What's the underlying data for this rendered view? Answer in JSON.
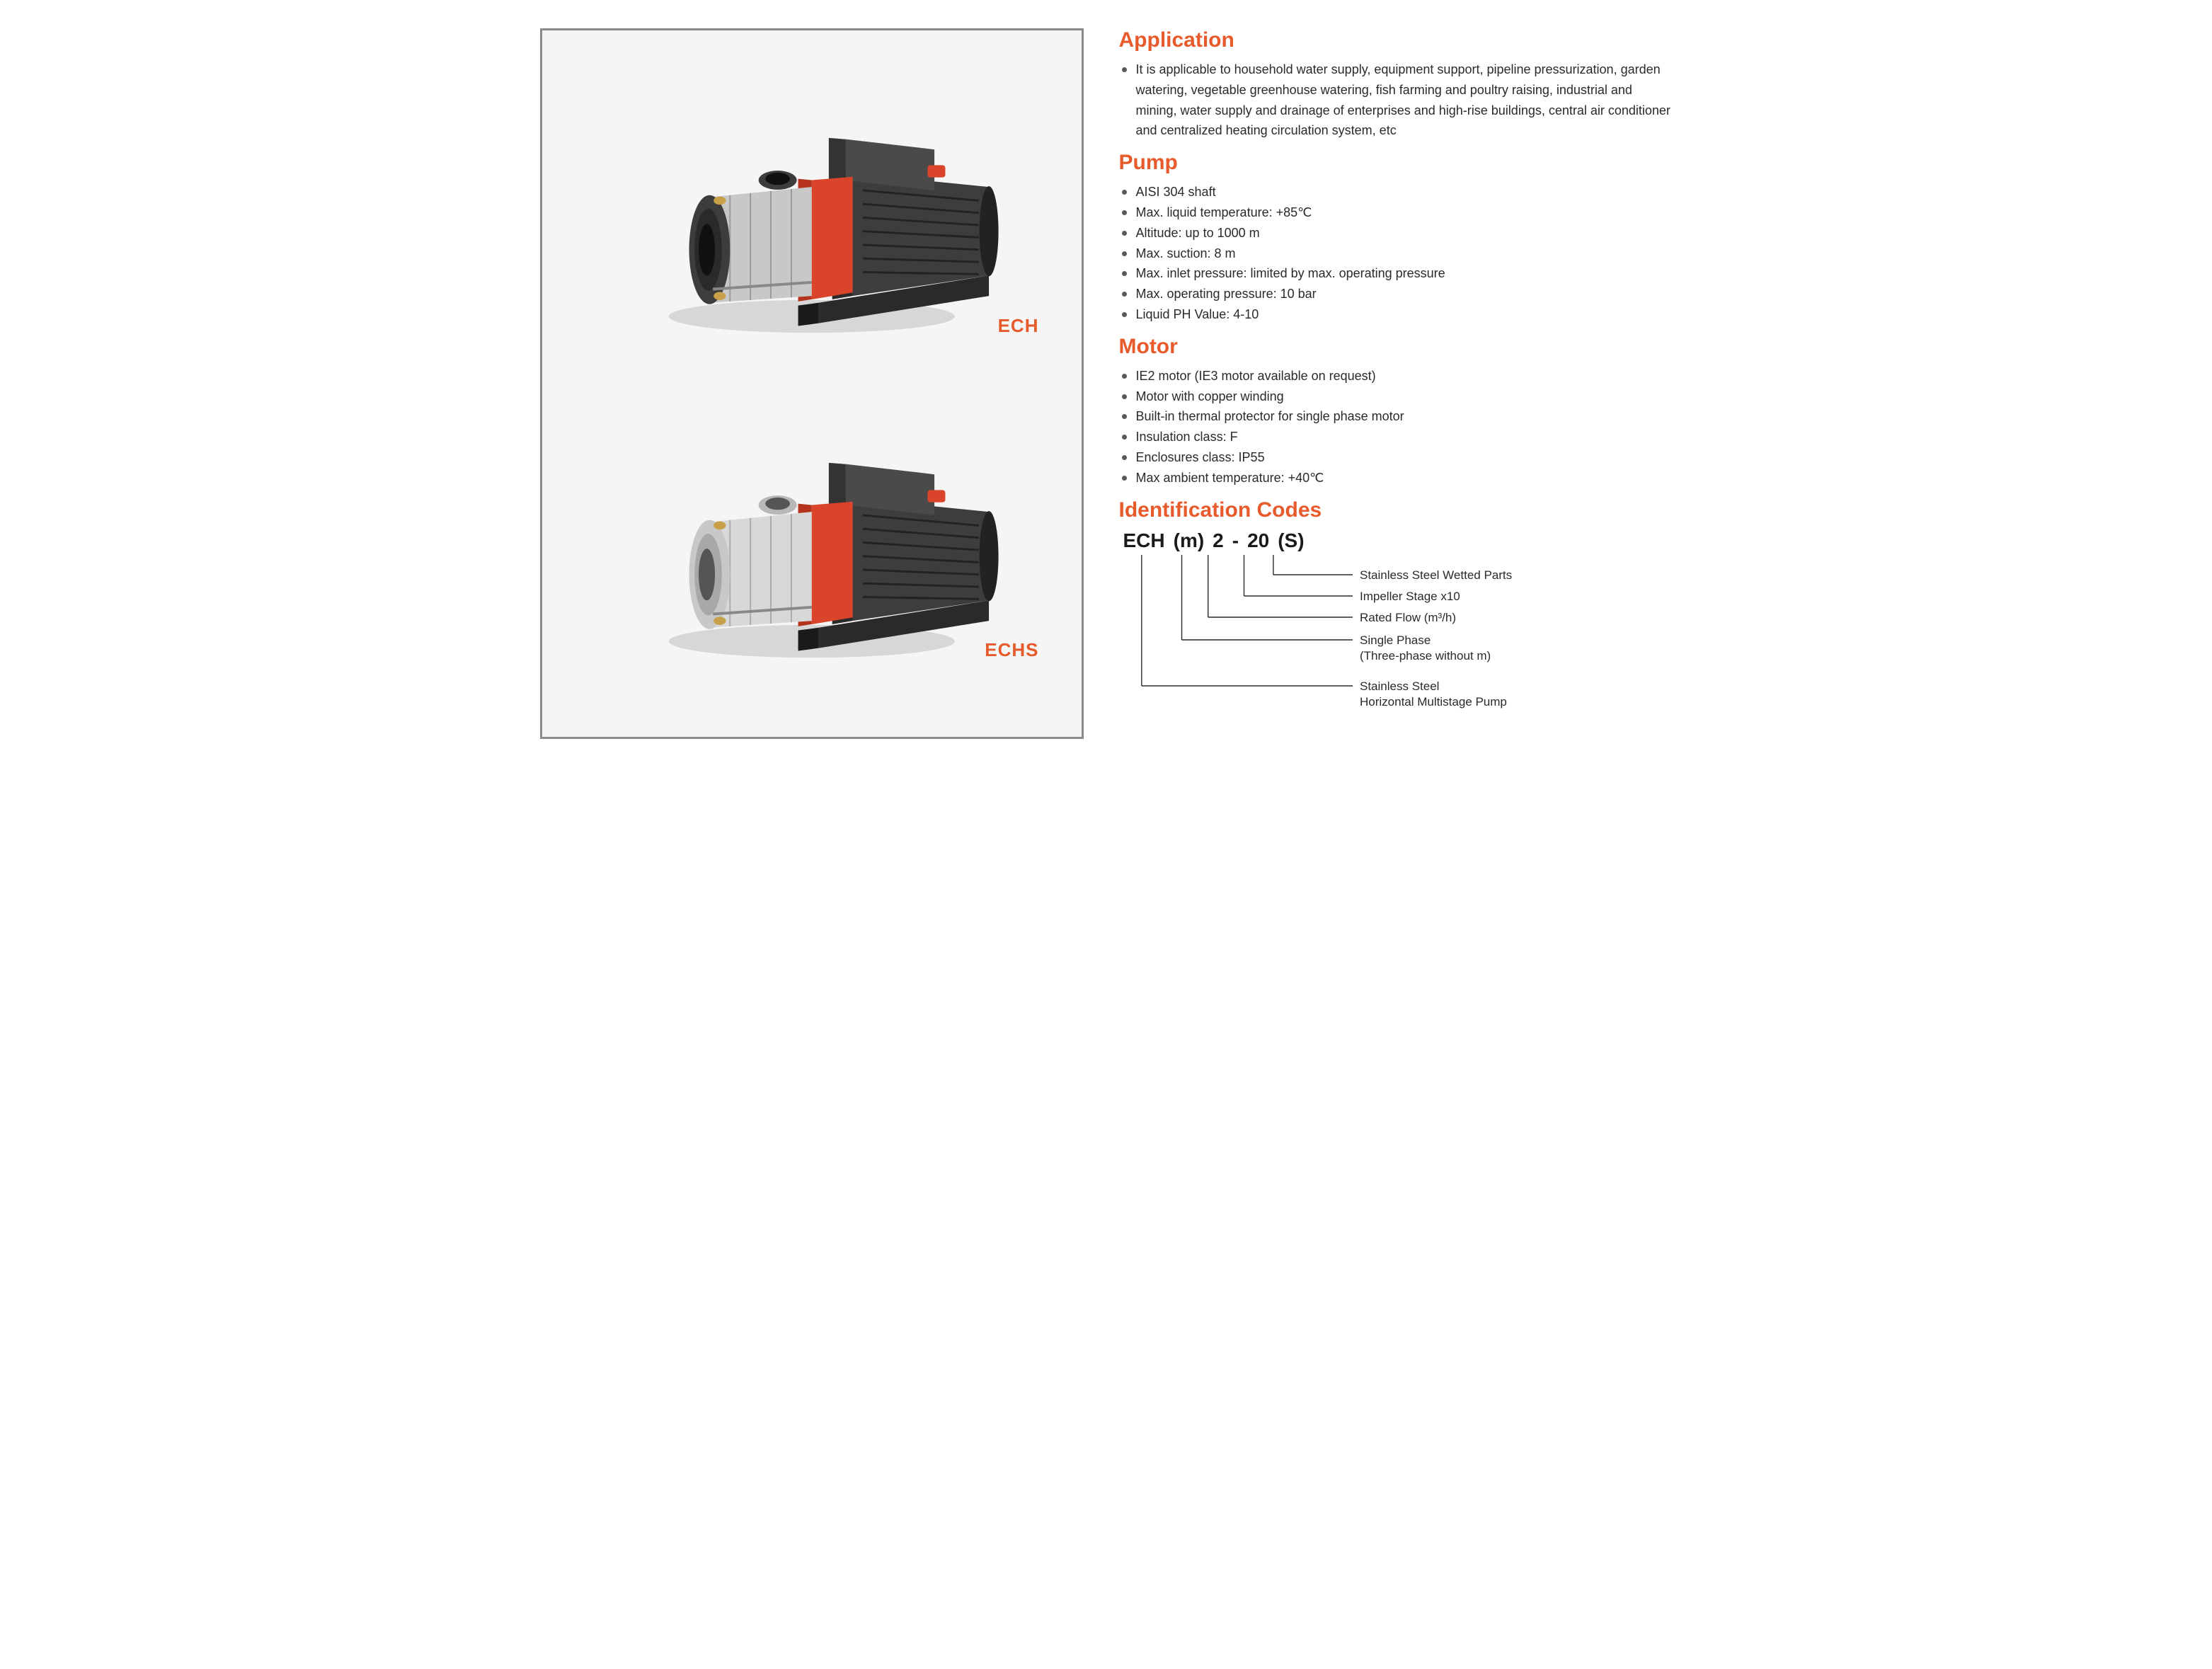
{
  "colors": {
    "accent": "#e75a2b",
    "text": "#2a2a2a",
    "bullet": "#5a5a5a",
    "panel_border": "#8a8a8a",
    "panel_bg": "#f5f5f5",
    "pump_body_dark": "#3d3d3d",
    "pump_body_light": "#5a5a5a",
    "pump_steel": "#c8c8c8",
    "pump_steel_light": "#e2e2e2",
    "pump_red": "#d9442a",
    "pump_red_dark": "#b5331c",
    "pump_brass": "#c9a04a"
  },
  "products": [
    {
      "label": "ECH",
      "body_material": "dark"
    },
    {
      "label": "ECHS",
      "body_material": "steel"
    }
  ],
  "sections": {
    "application": {
      "heading": "Application",
      "items": [
        "It is applicable to household water supply, equipment support, pipeline pressurization, garden watering, vegetable greenhouse watering, fish farming and poultry raising, industrial and mining, water supply and drainage of enterprises and high-rise buildings, central air conditioner and centralized heating circulation system, etc"
      ]
    },
    "pump": {
      "heading": "Pump",
      "items": [
        "AISI 304 shaft",
        "Max. liquid temperature: +85℃",
        "Altitude: up to 1000 m",
        "Max. suction: 8 m",
        "Max. inlet pressure: limited by max. operating pressure",
        "Max. operating pressure: 10 bar",
        "Liquid PH Value: 4-10"
      ]
    },
    "motor": {
      "heading": "Motor",
      "items": [
        "IE2 motor (IE3 motor available on request)",
        "Motor with copper winding",
        "Built-in thermal protector for single phase motor",
        "Insulation class: F",
        "Enclosures class: IP55",
        "Max ambient temperature: +40℃"
      ]
    },
    "identification": {
      "heading": "Identification Codes",
      "code_segments": [
        "ECH",
        "(m)",
        "2",
        "-",
        "20",
        "(S)"
      ],
      "mappings": [
        {
          "seg_index": 5,
          "desc": "Stainless Steel Wetted Parts"
        },
        {
          "seg_index": 4,
          "desc": "Impeller Stage x10"
        },
        {
          "seg_index": 2,
          "desc": "Rated Flow (m³/h)"
        },
        {
          "seg_index": 1,
          "desc": "Single Phase\n(Three-phase without m)"
        },
        {
          "seg_index": 0,
          "desc": "Stainless Steel\nHorizontal Multistage Pump"
        }
      ]
    }
  }
}
